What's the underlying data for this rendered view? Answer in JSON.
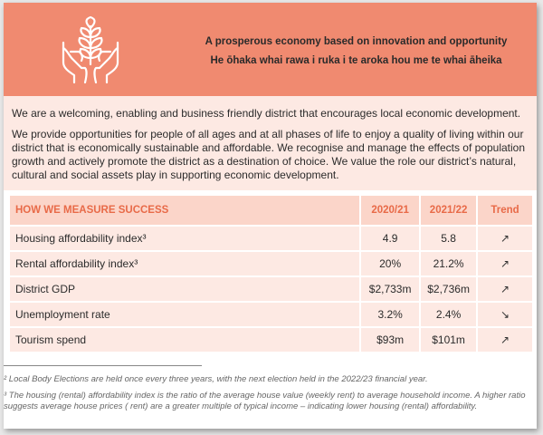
{
  "header": {
    "line1": "A prosperous economy based on innovation and opportunity",
    "line2": "He ōhaka whai rawa i ruka i te aroka hou me te whai āheika",
    "logo_icon": "hands-plant-icon",
    "accent_color": "#f08a70"
  },
  "intro": {
    "p1": "We are a welcoming, enabling and business friendly district that encourages local economic development.",
    "p2": "We provide opportunities for people of all ages and at all phases of life to enjoy a quality of living within our district that is economically sustainable and affordable. We recognise and manage the effects of population growth and actively promote the district as a destination of choice. We value the role our district’s natural, cultural and social assets play in supporting economic development."
  },
  "table": {
    "headers": [
      "HOW WE MEASURE SUCCESS",
      "2020/21",
      "2021/22",
      "Trend"
    ],
    "rows": [
      {
        "measure": "Housing affordability index³",
        "y1": "4.9",
        "y2": "5.8",
        "trend": "↗",
        "trend_icon": "arrow-up-right-icon"
      },
      {
        "measure": "Rental affordability index³",
        "y1": "20%",
        "y2": "21.2%",
        "trend": "↗",
        "trend_icon": "arrow-up-right-icon"
      },
      {
        "measure": "District GDP",
        "y1": "$2,733m",
        "y2": "$2,736m",
        "trend": "↗",
        "trend_icon": "arrow-up-right-icon"
      },
      {
        "measure": "Unemployment rate",
        "y1": "3.2%",
        "y2": "2.4%",
        "trend": "↘",
        "trend_icon": "arrow-down-right-icon"
      },
      {
        "measure": "Tourism spend",
        "y1": "$93m",
        "y2": "$101m",
        "trend": "↗",
        "trend_icon": "arrow-up-right-icon"
      }
    ]
  },
  "footnotes": {
    "fn2": "² Local Body Elections are held once every three years, with the next election held in the 2022/23 financial year.",
    "fn3": "³ The housing (rental) affordability index is the ratio of the average house value (weekly rent) to average household income. A higher ratio suggests average house prices ( rent) are a greater multiple of typical income – indicating lower housing (rental) affordability."
  }
}
